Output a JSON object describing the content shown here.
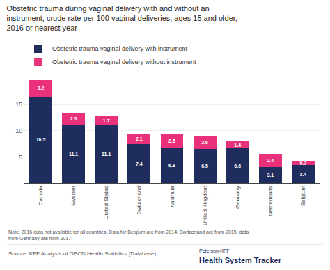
{
  "chart_data": {
    "type": "bar",
    "title": "Obstetric trauma during vaginal delivery with and without an\ninstrument, crude rate per 100 vaginal deliveries, ages 15 and older,\n2016 or nearest year",
    "categories": [
      "Canada",
      "Sweden",
      "United States",
      "Switzerland",
      "Australia",
      "United Kingdom",
      "Germany",
      "Netherlands",
      "Belgium"
    ],
    "series": [
      {
        "name": "Obstetric trauma vaginal delivery with instrument",
        "color": "#1e2d5e",
        "values": [
          16.5,
          11.1,
          11.1,
          7.4,
          6.8,
          6.5,
          6.6,
          3.1,
          3.4
        ]
      },
      {
        "name": "Obstetric trauma vaginal delivery without instrument",
        "color": "#e8317a",
        "values": [
          3.2,
          2.3,
          1.7,
          2.1,
          2.5,
          2.6,
          1.4,
          2.4,
          0.7
        ]
      }
    ],
    "ylim": [
      0,
      21
    ],
    "yticks": [
      5,
      10,
      15
    ],
    "grid": true,
    "stacked": true,
    "data_labels": true,
    "legend": "top",
    "annotations": [
      "Note: 2016 data not available for all countries. Data for Belgium are from 2014; Switzerland are from 2015; data\nfrom Germany are from 2017.",
      "Source: KFF Analysis of OECD Health Statistics (Database)",
      "Peterson-KFF",
      "Health System Tracker"
    ]
  }
}
